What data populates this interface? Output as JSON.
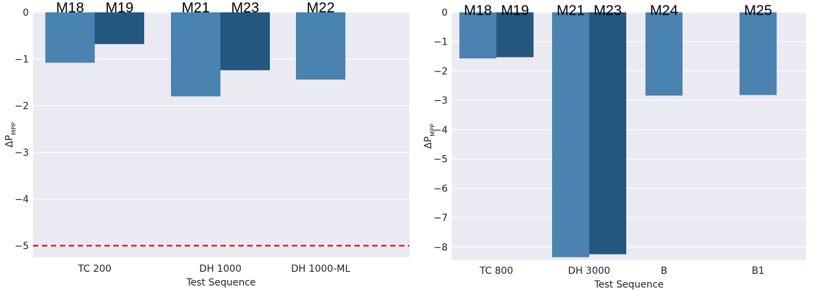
{
  "colors": {
    "plot_bg": "#eaeaf2",
    "grid": "#ffffff",
    "bar_light": "#4a82b0",
    "bar_dark": "#245680",
    "ref_line": "#d62728"
  },
  "chart_data": [
    {
      "type": "bar",
      "xlabel": "Test Sequence",
      "ylabel": "ΔP",
      "ylabel_sub": "MPP",
      "ylim": [
        -5.25,
        0
      ],
      "yticks": [
        0,
        -1,
        -2,
        -3,
        -4,
        -5
      ],
      "ytick_labels": [
        "0",
        "−1",
        "−2",
        "−3",
        "−4",
        "−5"
      ],
      "grid": true,
      "categories": [
        "TC 200",
        "DH 1000",
        "DH 1000-ML"
      ],
      "bars": [
        {
          "category": "TC 200",
          "label": "M18",
          "value": -1.08,
          "shade": "light"
        },
        {
          "category": "TC 200",
          "label": "M19",
          "value": -0.68,
          "shade": "dark"
        },
        {
          "category": "DH 1000",
          "label": "M21",
          "value": -1.8,
          "shade": "light"
        },
        {
          "category": "DH 1000",
          "label": "M23",
          "value": -1.24,
          "shade": "dark"
        },
        {
          "category": "DH 1000-ML",
          "label": "M22",
          "value": -1.44,
          "shade": "light"
        }
      ],
      "reference_line": {
        "value": -5,
        "style": "dashed"
      }
    },
    {
      "type": "bar",
      "xlabel": "Test Sequence",
      "ylabel": "ΔP",
      "ylabel_sub": "MPP",
      "ylim": [
        -8.45,
        0
      ],
      "yticks": [
        0,
        -1,
        -2,
        -3,
        -4,
        -5,
        -6,
        -7,
        -8
      ],
      "ytick_labels": [
        "0",
        "−1",
        "−2",
        "−3",
        "−4",
        "−5",
        "−6",
        "−7",
        "−8"
      ],
      "grid": true,
      "categories": [
        "TC 800",
        "DH 3000",
        "B",
        "B1"
      ],
      "bars": [
        {
          "category": "TC 800",
          "label": "M18",
          "value": -1.57,
          "shade": "light"
        },
        {
          "category": "TC 800",
          "label": "M19",
          "value": -1.53,
          "shade": "dark"
        },
        {
          "category": "DH 3000",
          "label": "M21",
          "value": -8.35,
          "shade": "light"
        },
        {
          "category": "DH 3000",
          "label": "M23",
          "value": -8.25,
          "shade": "dark"
        },
        {
          "category": "B",
          "label": "M24",
          "value": -2.84,
          "shade": "light"
        },
        {
          "category": "B1",
          "label": "M25",
          "value": -2.82,
          "shade": "light"
        }
      ]
    }
  ]
}
